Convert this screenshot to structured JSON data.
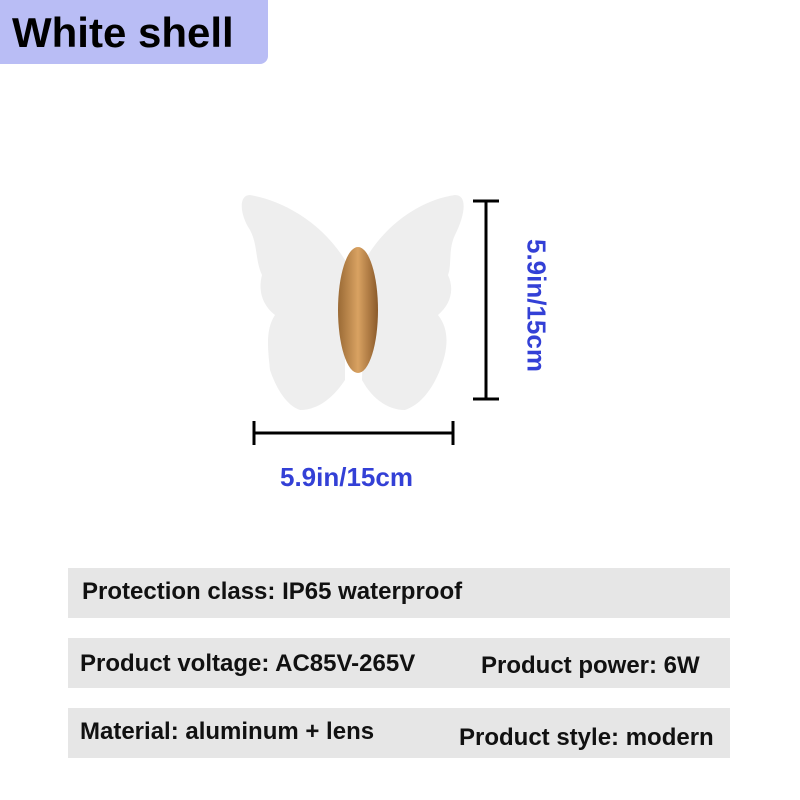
{
  "title": "White shell",
  "dimensions": {
    "height": "5.9in/15cm",
    "width": "5.9in/15cm"
  },
  "specs": [
    {
      "left": "Protection class: IP65 waterproof",
      "right": ""
    },
    {
      "left": "Product voltage: AC85V-265V",
      "right": "Product power: 6W"
    },
    {
      "left": "Material: aluminum + lens",
      "right": "Product style: modern"
    }
  ],
  "colors": {
    "title_bg": "#b9bdf5",
    "dimension_text": "#3340d6",
    "body": "#c08a4c"
  }
}
